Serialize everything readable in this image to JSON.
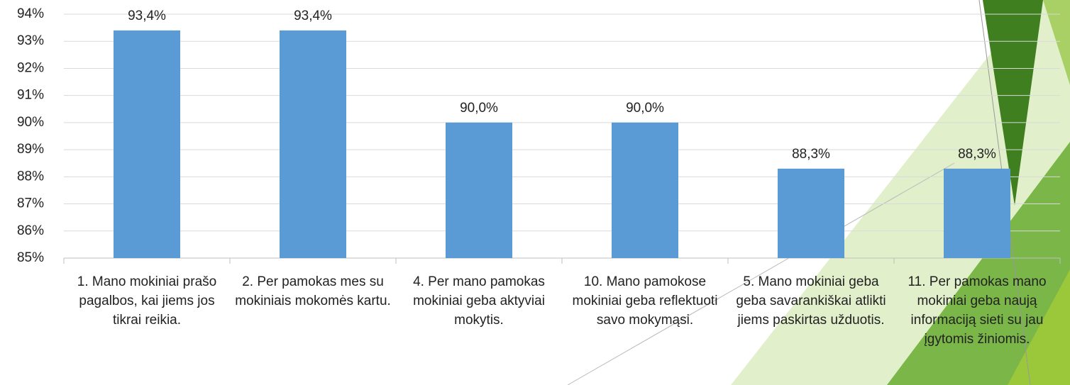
{
  "chart_data": {
    "type": "bar",
    "categories": [
      "1. Mano mokiniai prašo pagalbos, kai jiems jos tikrai reikia.",
      "2. Per pamokas mes su mokiniais mokomės kartu.",
      "4. Per mano pamokas mokiniai geba aktyviai mokytis.",
      "10. Mano pamokose mokiniai geba reflektuoti savo mokymąsi.",
      "5. Mano mokiniai geba geba savarankiškai atlikti jiems paskirtas užduotis.",
      "11. Per pamokas mano mokiniai geba naują informaciją sieti su jau įgytomis žiniomis."
    ],
    "values": [
      93.4,
      93.4,
      90.0,
      90.0,
      88.3,
      88.3
    ],
    "value_labels": [
      "93,4%",
      "93,4%",
      "90,0%",
      "90,0%",
      "88,3%",
      "88,3%"
    ],
    "color": "#5b9bd5",
    "ylim": [
      85,
      94
    ],
    "yticks": [
      {
        "value": 85,
        "label": "85%"
      },
      {
        "value": 86,
        "label": "86%"
      },
      {
        "value": 87,
        "label": "87%"
      },
      {
        "value": 88,
        "label": "88%"
      },
      {
        "value": 89,
        "label": "89%"
      },
      {
        "value": 90,
        "label": "90%"
      },
      {
        "value": 91,
        "label": "91%"
      },
      {
        "value": 92,
        "label": "92%"
      },
      {
        "value": 93,
        "label": "93%"
      },
      {
        "value": 94,
        "label": "94%"
      }
    ],
    "grid": true
  }
}
